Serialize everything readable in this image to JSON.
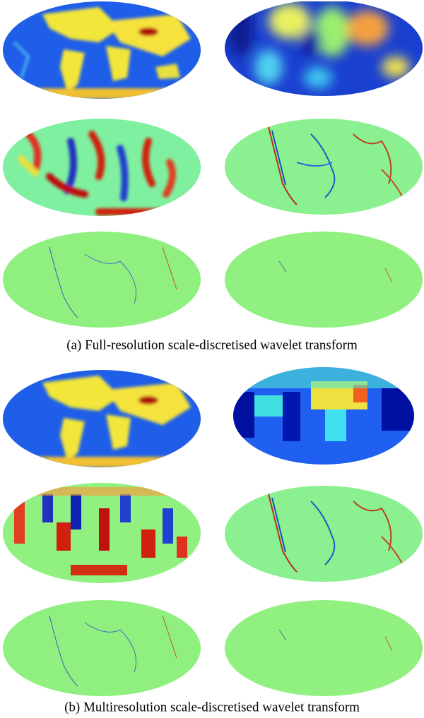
{
  "figure": {
    "subfigures": [
      {
        "caption": "(a) Full-resolution scale-discretised wavelet transform"
      },
      {
        "caption": "(b) Multiresolution scale-discretised wavelet transform"
      }
    ]
  }
}
